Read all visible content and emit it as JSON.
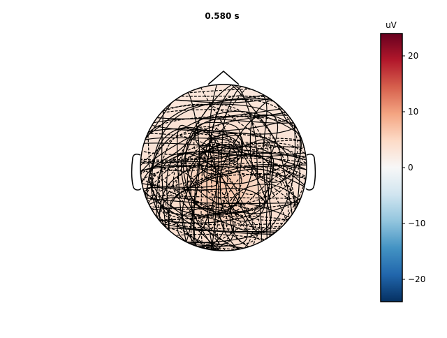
{
  "chart_data": {
    "type": "heatmap",
    "title": "0.580 s",
    "colorbar": {
      "unit": "uV",
      "range": [
        -24,
        24
      ],
      "ticks": [
        -20,
        -10,
        0,
        10,
        20
      ],
      "tick_labels": [
        "−20",
        "−10",
        "0",
        "10",
        "20"
      ],
      "colormap": [
        "#053061",
        "#2166ac",
        "#4393c3",
        "#92c5de",
        "#d1e5f0",
        "#f7f7f7",
        "#fddbc7",
        "#f4a582",
        "#d6604d",
        "#b2182b",
        "#67001f"
      ]
    },
    "topomap": {
      "head_outline": true,
      "nose": true,
      "ears": true,
      "contour_lines": "dense overlapping contours",
      "peak_value_uV": 5,
      "base_value_uV": 2
    }
  }
}
